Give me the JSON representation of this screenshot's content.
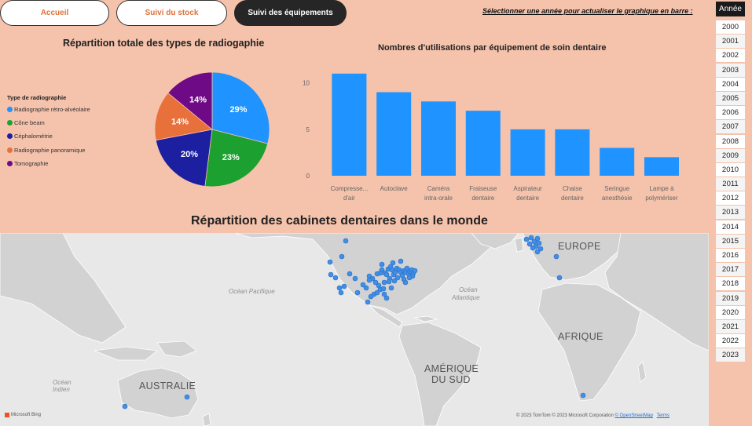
{
  "nav": {
    "home": "Accueil",
    "stock": "Suivi du stock",
    "equipment": "Suivi des équipements"
  },
  "year_slicer": {
    "prompt": "Sélectionner une année pour actualiser le graphique en barre :",
    "header": "Année",
    "years": [
      "2000",
      "2001",
      "2002",
      "2003",
      "2004",
      "2005",
      "2006",
      "2007",
      "2008",
      "2009",
      "2010",
      "2011",
      "2012",
      "2013",
      "2014",
      "2015",
      "2016",
      "2017",
      "2018",
      "2019",
      "2020",
      "2021",
      "2022",
      "2023"
    ]
  },
  "pie_chart": {
    "title": "Répartition totale des types de radiogaphie",
    "legend_title": "Type de radiographie",
    "slices": [
      {
        "label": "Radiographie rétro-alvéolaire",
        "value": 29,
        "text": "29%",
        "color": "#1f93ff"
      },
      {
        "label": "Cône beam",
        "value": 23,
        "text": "23%",
        "color": "#1ca02f"
      },
      {
        "label": "Céphalométrie",
        "value": 20,
        "text": "20%",
        "color": "#1b1fa0"
      },
      {
        "label": "Radiographie panoramique",
        "value": 14,
        "text": "14%",
        "color": "#e8703b"
      },
      {
        "label": "Tomographie",
        "value": 14,
        "text": "14%",
        "color": "#6e0a86"
      }
    ]
  },
  "chart_data": {
    "type": "bar",
    "title": "Nombres d'utilisations par équipement de soin dentaire",
    "categories": [
      [
        "Compresse...",
        "d'air"
      ],
      [
        "Autoclave"
      ],
      [
        "Caméra",
        "intra-orale"
      ],
      [
        "Fraiseuse",
        "dentaire"
      ],
      [
        "Aspirateur",
        "dentaire"
      ],
      [
        "Chaise",
        "dentaire"
      ],
      [
        "Seringue",
        "anesthésie"
      ],
      [
        "Lampe à",
        "polymériser"
      ]
    ],
    "values": [
      11,
      9,
      8,
      7,
      5,
      5,
      3,
      2
    ],
    "yticks": [
      "0",
      "5",
      "10"
    ],
    "ylim": [
      0,
      12
    ],
    "color": "#1f93ff"
  },
  "map": {
    "title": "Répartition des cabinets dentaires dans le monde",
    "labels": {
      "europe": "EUROPE",
      "afrique": "AFRIQUE",
      "amerique_sud_1": "AMÉRIQUE",
      "amerique_sud_2": "DU SUD",
      "australie": "AUSTRALIE",
      "pacific": "Océan Pacifique",
      "atlantique_1": "Océan",
      "atlantique_2": "Atlantique",
      "indien_1": "Océan",
      "indien_2": "Indien"
    },
    "copyright": "© 2023 TomTom  © 2023 Microsoft Corporation",
    "osm": "© OpenStreetMap",
    "terms": "Terms",
    "bing": "Microsoft Bing",
    "marker_color": "#3f8ee8"
  }
}
